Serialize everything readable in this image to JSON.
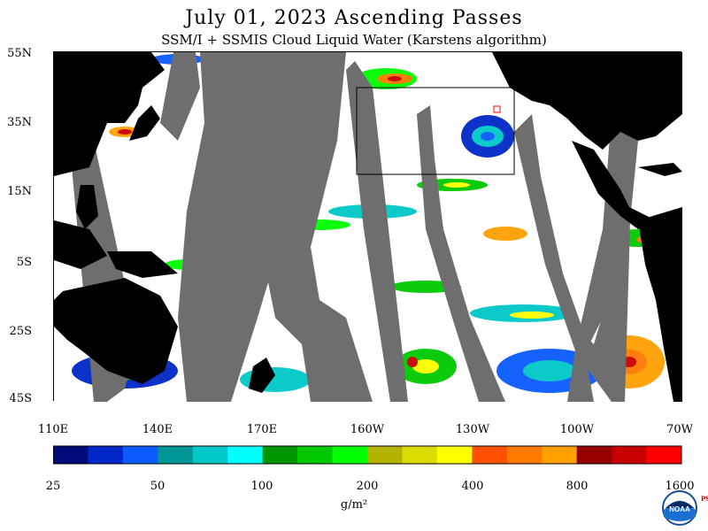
{
  "header": {
    "title": "July 01, 2023  Ascending Passes",
    "subtitle": "SSM/I + SSMIS Cloud Liquid Water (Karstens algorithm)"
  },
  "map": {
    "lat_labels": [
      "55N",
      "35N",
      "15N",
      "5S",
      "25S",
      "45S"
    ],
    "lon_labels": [
      "110E",
      "140E",
      "170E",
      "160W",
      "130W",
      "100W",
      "70W"
    ],
    "colors": {
      "land": "#000000",
      "no_data_swath_gap": "#6e6e6e",
      "clear": "#ffffff",
      "box_outline": "#000000"
    }
  },
  "colorbar": {
    "labels": [
      "25",
      "50",
      "100",
      "200",
      "400",
      "800",
      "1600"
    ],
    "units": "g/m²",
    "colors": [
      "#000a78",
      "#0028c8",
      "#0a5aff",
      "#009696",
      "#00c8c8",
      "#00ffff",
      "#009600",
      "#00c800",
      "#00ff00",
      "#b4b400",
      "#dcdc00",
      "#ffff00",
      "#ff5000",
      "#ff7800",
      "#ffa000",
      "#960000",
      "#c80000",
      "#ff0000"
    ]
  },
  "logo": {
    "name": "noaa-logo",
    "text": "NOAA",
    "side_text": "PSL"
  }
}
